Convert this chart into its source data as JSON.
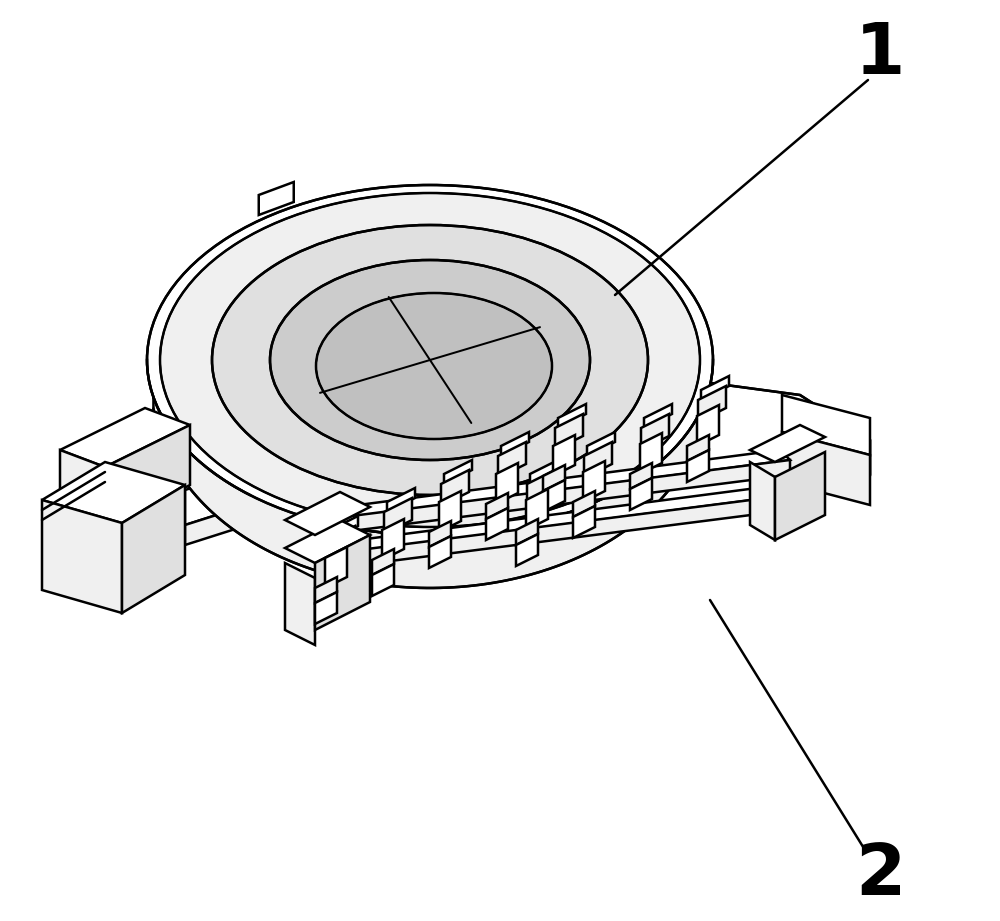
{
  "background_color": "#ffffff",
  "line_color": "#000000",
  "label_1": "1",
  "label_2": "2",
  "label_fontsize": 52,
  "line_width": 1.8,
  "fig_width": 10.0,
  "fig_height": 9.21
}
